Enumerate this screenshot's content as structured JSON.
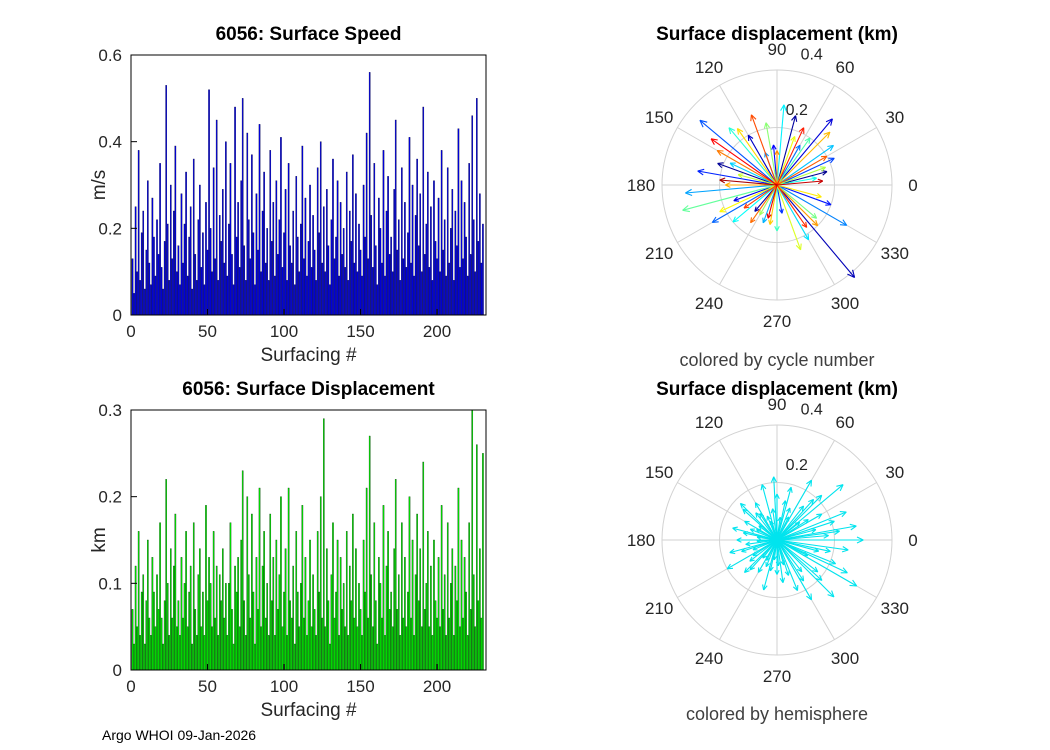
{
  "figure": {
    "footer": "Argo WHOI 09-Jan-2026",
    "background": "#FFFFFF"
  },
  "chart_data": [
    {
      "id": "surface_speed",
      "type": "bar",
      "title": "6056: Surface Speed",
      "xlabel": "Surfacing #",
      "ylabel": "m/s",
      "xlim": [
        0,
        232
      ],
      "ylim": [
        0,
        0.6
      ],
      "xticks": [
        0,
        50,
        100,
        150,
        200
      ],
      "yticks": [
        0,
        0.2,
        0.4,
        0.6
      ],
      "bar_color": "#0000EE",
      "bar_edge": "#000040",
      "grid": false,
      "values": [
        0.13,
        0.05,
        0.25,
        0.1,
        0.38,
        0.08,
        0.19,
        0.24,
        0.06,
        0.15,
        0.31,
        0.12,
        0.07,
        0.27,
        0.18,
        0.09,
        0.22,
        0.14,
        0.35,
        0.11,
        0.06,
        0.17,
        0.53,
        0.21,
        0.08,
        0.3,
        0.13,
        0.24,
        0.39,
        0.1,
        0.16,
        0.07,
        0.28,
        0.12,
        0.21,
        0.33,
        0.09,
        0.18,
        0.25,
        0.06,
        0.36,
        0.14,
        0.08,
        0.22,
        0.3,
        0.11,
        0.19,
        0.07,
        0.26,
        0.15,
        0.52,
        0.2,
        0.1,
        0.34,
        0.13,
        0.45,
        0.08,
        0.23,
        0.17,
        0.29,
        0.12,
        0.4,
        0.09,
        0.21,
        0.35,
        0.14,
        0.07,
        0.48,
        0.18,
        0.26,
        0.11,
        0.31,
        0.5,
        0.16,
        0.08,
        0.42,
        0.22,
        0.13,
        0.37,
        0.19,
        0.07,
        0.28,
        0.15,
        0.44,
        0.1,
        0.24,
        0.33,
        0.12,
        0.2,
        0.08,
        0.38,
        0.17,
        0.26,
        0.09,
        0.31,
        0.14,
        0.22,
        0.41,
        0.11,
        0.19,
        0.29,
        0.08,
        0.35,
        0.16,
        0.12,
        0.24,
        0.07,
        0.32,
        0.18,
        0.1,
        0.21,
        0.39,
        0.13,
        0.27,
        0.09,
        0.17,
        0.3,
        0.11,
        0.23,
        0.15,
        0.08,
        0.34,
        0.19,
        0.4,
        0.12,
        0.25,
        0.1,
        0.29,
        0.16,
        0.07,
        0.22,
        0.36,
        0.13,
        0.18,
        0.31,
        0.09,
        0.26,
        0.14,
        0.2,
        0.11,
        0.33,
        0.08,
        0.24,
        0.17,
        0.37,
        0.12,
        0.28,
        0.1,
        0.21,
        0.15,
        0.09,
        0.3,
        0.18,
        0.42,
        0.13,
        0.56,
        0.23,
        0.11,
        0.35,
        0.16,
        0.07,
        0.27,
        0.2,
        0.12,
        0.38,
        0.09,
        0.24,
        0.32,
        0.14,
        0.18,
        0.1,
        0.29,
        0.45,
        0.15,
        0.22,
        0.08,
        0.34,
        0.13,
        0.26,
        0.11,
        0.19,
        0.41,
        0.12,
        0.3,
        0.09,
        0.23,
        0.36,
        0.16,
        0.28,
        0.1,
        0.48,
        0.14,
        0.21,
        0.33,
        0.11,
        0.25,
        0.08,
        0.31,
        0.17,
        0.13,
        0.27,
        0.1,
        0.38,
        0.15,
        0.22,
        0.09,
        0.34,
        0.12,
        0.2,
        0.29,
        0.08,
        0.24,
        0.16,
        0.43,
        0.11,
        0.31,
        0.13,
        0.26,
        0.18,
        0.09,
        0.35,
        0.14,
        0.46,
        0.22,
        0.1,
        0.5,
        0.17,
        0.28,
        0.12,
        0.21
      ]
    },
    {
      "id": "surface_displacement",
      "type": "bar",
      "title": "6056: Surface Displacement",
      "xlabel": "Surfacing #",
      "ylabel": "km",
      "xlim": [
        0,
        232
      ],
      "ylim": [
        0,
        0.3
      ],
      "xticks": [
        0,
        50,
        100,
        150,
        200
      ],
      "yticks": [
        0,
        0.1,
        0.2,
        0.3
      ],
      "bar_color": "#00F000",
      "bar_edge": "#003800",
      "grid": false,
      "values": [
        0.07,
        0.03,
        0.12,
        0.05,
        0.16,
        0.04,
        0.09,
        0.11,
        0.03,
        0.08,
        0.15,
        0.06,
        0.04,
        0.13,
        0.09,
        0.05,
        0.11,
        0.07,
        0.17,
        0.06,
        0.03,
        0.08,
        0.22,
        0.1,
        0.04,
        0.14,
        0.06,
        0.12,
        0.18,
        0.05,
        0.08,
        0.04,
        0.13,
        0.06,
        0.1,
        0.16,
        0.05,
        0.09,
        0.12,
        0.03,
        0.17,
        0.07,
        0.04,
        0.11,
        0.14,
        0.05,
        0.09,
        0.04,
        0.19,
        0.08,
        0.13,
        0.1,
        0.05,
        0.16,
        0.06,
        0.12,
        0.04,
        0.11,
        0.08,
        0.14,
        0.06,
        0.1,
        0.04,
        0.1,
        0.17,
        0.07,
        0.03,
        0.12,
        0.09,
        0.13,
        0.05,
        0.15,
        0.23,
        0.08,
        0.04,
        0.2,
        0.11,
        0.06,
        0.18,
        0.09,
        0.03,
        0.13,
        0.07,
        0.21,
        0.05,
        0.12,
        0.16,
        0.06,
        0.1,
        0.04,
        0.18,
        0.08,
        0.13,
        0.04,
        0.15,
        0.07,
        0.11,
        0.2,
        0.05,
        0.09,
        0.14,
        0.04,
        0.21,
        0.08,
        0.06,
        0.12,
        0.03,
        0.16,
        0.09,
        0.05,
        0.1,
        0.19,
        0.06,
        0.13,
        0.04,
        0.08,
        0.15,
        0.05,
        0.11,
        0.07,
        0.04,
        0.16,
        0.09,
        0.2,
        0.06,
        0.29,
        0.05,
        0.14,
        0.08,
        0.03,
        0.11,
        0.17,
        0.06,
        0.09,
        0.15,
        0.04,
        0.13,
        0.07,
        0.1,
        0.05,
        0.16,
        0.04,
        0.12,
        0.08,
        0.18,
        0.06,
        0.14,
        0.05,
        0.1,
        0.07,
        0.04,
        0.15,
        0.09,
        0.21,
        0.06,
        0.27,
        0.11,
        0.05,
        0.17,
        0.08,
        0.03,
        0.13,
        0.1,
        0.06,
        0.19,
        0.04,
        0.12,
        0.16,
        0.07,
        0.09,
        0.05,
        0.14,
        0.22,
        0.07,
        0.11,
        0.04,
        0.17,
        0.06,
        0.13,
        0.05,
        0.09,
        0.2,
        0.06,
        0.15,
        0.04,
        0.11,
        0.18,
        0.08,
        0.14,
        0.05,
        0.24,
        0.07,
        0.1,
        0.16,
        0.05,
        0.12,
        0.04,
        0.15,
        0.08,
        0.06,
        0.13,
        0.05,
        0.19,
        0.07,
        0.11,
        0.04,
        0.17,
        0.06,
        0.1,
        0.14,
        0.04,
        0.12,
        0.08,
        0.21,
        0.05,
        0.15,
        0.06,
        0.13,
        0.09,
        0.04,
        0.17,
        0.07,
        0.3,
        0.11,
        0.05,
        0.26,
        0.08,
        0.14,
        0.06,
        0.25
      ]
    },
    {
      "id": "polar_cycle",
      "type": "polar_quiver",
      "title": "Surface displacement (km)",
      "caption": "colored by cycle number",
      "rlim": [
        0,
        0.4
      ],
      "rticks": [
        0.2,
        0.4
      ],
      "theta_labels": [
        0,
        30,
        60,
        90,
        120,
        150,
        180,
        210,
        240,
        270,
        300,
        330
      ],
      "grid_color": "#D2D2D2",
      "arrows": [
        [
          15,
          0.18,
          "#00008F"
        ],
        [
          160,
          0.22,
          "#000097"
        ],
        [
          75,
          0.25,
          "#00009F"
        ],
        [
          230,
          0.12,
          "#0000A7"
        ],
        [
          310,
          0.42,
          "#0000B7"
        ],
        [
          120,
          0.2,
          "#0000C7"
        ],
        [
          50,
          0.3,
          "#0000D7"
        ],
        [
          200,
          0.16,
          "#0000E7"
        ],
        [
          95,
          0.14,
          "#0000FF"
        ],
        [
          340,
          0.2,
          "#0013FF"
        ],
        [
          170,
          0.28,
          "#0023FF"
        ],
        [
          280,
          0.1,
          "#0033FF"
        ],
        [
          25,
          0.22,
          "#0043FF"
        ],
        [
          140,
          0.35,
          "#0053FF"
        ],
        [
          210,
          0.26,
          "#0063FF"
        ],
        [
          60,
          0.16,
          "#0073FF"
        ],
        [
          330,
          0.28,
          "#0083FF"
        ],
        [
          110,
          0.12,
          "#0093FF"
        ],
        [
          185,
          0.32,
          "#00A3FF"
        ],
        [
          250,
          0.14,
          "#00B3FF"
        ],
        [
          35,
          0.24,
          "#00C3FF"
        ],
        [
          155,
          0.18,
          "#00D3FF"
        ],
        [
          300,
          0.22,
          "#00E3FF"
        ],
        [
          85,
          0.28,
          "#00F3FF"
        ],
        [
          220,
          0.2,
          "#00FFFA"
        ],
        [
          10,
          0.14,
          "#13FFEA"
        ],
        [
          130,
          0.26,
          "#27FFD7"
        ],
        [
          270,
          0.16,
          "#3BFFC3"
        ],
        [
          55,
          0.2,
          "#4FFFAF"
        ],
        [
          195,
          0.34,
          "#63FF9B"
        ],
        [
          320,
          0.18,
          "#77FF87"
        ],
        [
          100,
          0.22,
          "#8BFF73"
        ],
        [
          240,
          0.12,
          "#9FFF5F"
        ],
        [
          20,
          0.18,
          "#B3FF4B"
        ],
        [
          165,
          0.14,
          "#C7FF37"
        ],
        [
          290,
          0.24,
          "#DBFF23"
        ],
        [
          70,
          0.18,
          "#EFFF0F"
        ],
        [
          205,
          0.22,
          "#FFFB00"
        ],
        [
          345,
          0.16,
          "#FFEB00"
        ],
        [
          125,
          0.24,
          "#FFDB00"
        ],
        [
          260,
          0.14,
          "#FFCB00"
        ],
        [
          45,
          0.26,
          "#FFBB00"
        ],
        [
          180,
          0.18,
          "#FFAB00"
        ],
        [
          315,
          0.2,
          "#FF9B00"
        ],
        [
          90,
          0.12,
          "#FF8B00"
        ],
        [
          150,
          0.24,
          "#FF7B00"
        ],
        [
          235,
          0.16,
          "#FF6B00"
        ],
        [
          30,
          0.2,
          "#FF5B00"
        ],
        [
          110,
          0.26,
          "#FF4B00"
        ],
        [
          215,
          0.14,
          "#FF3B00"
        ],
        [
          305,
          0.18,
          "#FF2B00"
        ],
        [
          65,
          0.22,
          "#FF1B00"
        ],
        [
          145,
          0.28,
          "#FF0000"
        ],
        [
          255,
          0.12,
          "#E70000"
        ],
        [
          5,
          0.16,
          "#C70000"
        ],
        [
          175,
          0.2,
          "#A70000"
        ]
      ]
    },
    {
      "id": "polar_hemisphere",
      "type": "polar_quiver",
      "title": "Surface displacement (km)",
      "caption": "colored by hemisphere",
      "rlim": [
        0,
        0.4
      ],
      "rticks": [
        0.2,
        0.4
      ],
      "theta_labels": [
        0,
        30,
        60,
        90,
        120,
        150,
        180,
        210,
        240,
        270,
        300,
        330
      ],
      "grid_color": "#D2D2D2",
      "arrow_color": "#00E4EE",
      "arrows": [
        [
          0,
          0.3
        ],
        [
          8,
          0.22
        ],
        [
          15,
          0.14
        ],
        [
          22,
          0.26
        ],
        [
          30,
          0.18
        ],
        [
          38,
          0.1
        ],
        [
          45,
          0.22
        ],
        [
          52,
          0.15
        ],
        [
          60,
          0.24
        ],
        [
          68,
          0.12
        ],
        [
          75,
          0.19
        ],
        [
          82,
          0.08
        ],
        [
          90,
          0.16
        ],
        [
          98,
          0.11
        ],
        [
          105,
          0.2
        ],
        [
          112,
          0.09
        ],
        [
          120,
          0.15
        ],
        [
          128,
          0.12
        ],
        [
          135,
          0.18
        ],
        [
          142,
          0.08
        ],
        [
          150,
          0.13
        ],
        [
          158,
          0.1
        ],
        [
          165,
          0.16
        ],
        [
          172,
          0.07
        ],
        [
          180,
          0.14
        ],
        [
          188,
          0.11
        ],
        [
          195,
          0.17
        ],
        [
          202,
          0.09
        ],
        [
          210,
          0.2
        ],
        [
          218,
          0.12
        ],
        [
          225,
          0.16
        ],
        [
          232,
          0.08
        ],
        [
          240,
          0.13
        ],
        [
          248,
          0.1
        ],
        [
          255,
          0.18
        ],
        [
          262,
          0.07
        ],
        [
          270,
          0.12
        ],
        [
          278,
          0.15
        ],
        [
          285,
          0.09
        ],
        [
          292,
          0.19
        ],
        [
          300,
          0.24
        ],
        [
          308,
          0.14
        ],
        [
          315,
          0.28
        ],
        [
          322,
          0.18
        ],
        [
          330,
          0.32
        ],
        [
          338,
          0.22
        ],
        [
          345,
          0.15
        ],
        [
          352,
          0.25
        ],
        [
          5,
          0.18
        ],
        [
          18,
          0.21
        ],
        [
          33,
          0.13
        ],
        [
          48,
          0.19
        ],
        [
          63,
          0.09
        ],
        [
          78,
          0.14
        ],
        [
          93,
          0.22
        ],
        [
          108,
          0.07
        ],
        [
          123,
          0.11
        ],
        [
          138,
          0.16
        ],
        [
          153,
          0.08
        ],
        [
          168,
          0.12
        ],
        [
          183,
          0.07
        ],
        [
          198,
          0.13
        ],
        [
          213,
          0.1
        ],
        [
          228,
          0.14
        ],
        [
          243,
          0.08
        ],
        [
          258,
          0.11
        ],
        [
          273,
          0.09
        ],
        [
          288,
          0.13
        ],
        [
          303,
          0.17
        ],
        [
          318,
          0.21
        ],
        [
          333,
          0.12
        ],
        [
          348,
          0.19
        ],
        [
          40,
          0.3
        ],
        [
          335,
          0.27
        ],
        [
          10,
          0.28
        ]
      ]
    }
  ]
}
